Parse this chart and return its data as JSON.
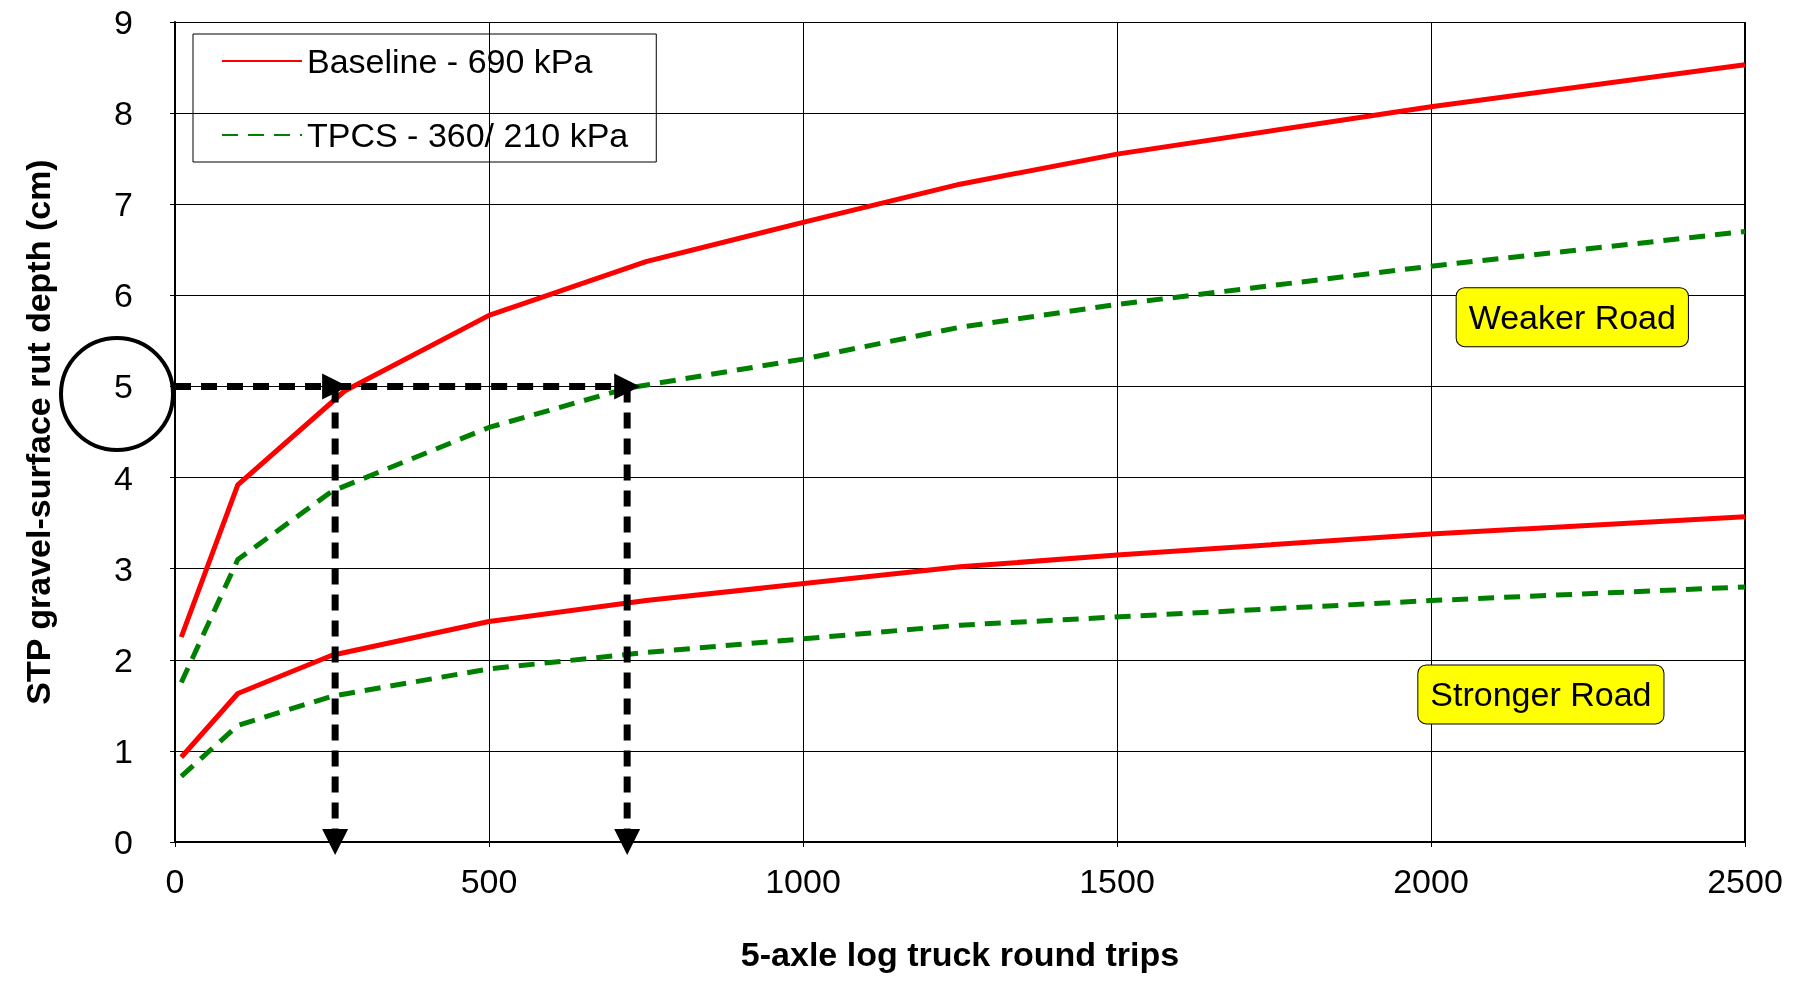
{
  "chart_data": {
    "type": "line",
    "xlabel": "5-axle log truck round trips",
    "ylabel": "STP gravel-surface rut depth (cm)",
    "xlim": [
      0,
      2500
    ],
    "xticks": [
      0,
      500,
      1000,
      1500,
      2000,
      2500
    ],
    "ylim": [
      0,
      9
    ],
    "yticks": [
      0,
      1,
      2,
      3,
      4,
      5,
      6,
      7,
      8,
      9
    ],
    "grid": true,
    "legend": "top left",
    "marker": "none",
    "series": [
      {
        "name": "Baseline - 690 kPa",
        "color": "#ff0000",
        "line_style": "solid",
        "x": [
          10,
          100,
          270,
          500,
          750,
          1000,
          1250,
          1500,
          2000,
          2500
        ],
        "values": [
          2.25,
          3.92,
          4.95,
          5.78,
          6.37,
          6.8,
          7.22,
          7.55,
          8.07,
          8.53
        ]
      },
      {
        "name": "TPCS - 360/ 210 kPa",
        "color": "#008000",
        "line_style": "dashed",
        "x": [
          10,
          100,
          250,
          500,
          720,
          1000,
          1250,
          1500,
          2000,
          2500
        ],
        "values": [
          1.75,
          3.1,
          3.85,
          4.55,
          4.98,
          5.3,
          5.65,
          5.9,
          6.32,
          6.7
        ]
      },
      {
        "color": "#ff0000",
        "line_style": "solid",
        "x": [
          10,
          100,
          250,
          500,
          750,
          1250,
          1500,
          2000,
          2500
        ],
        "values": [
          0.93,
          1.63,
          2.05,
          2.42,
          2.65,
          3.02,
          3.15,
          3.38,
          3.57
        ]
      },
      {
        "color": "#008000",
        "line_style": "dashed",
        "x": [
          10,
          100,
          250,
          500,
          750,
          1250,
          2000,
          2500
        ],
        "values": [
          0.72,
          1.28,
          1.6,
          1.9,
          2.08,
          2.38,
          2.65,
          2.8
        ]
      },
      {
        "color": "#000000",
        "line_style": "dashed",
        "marker": "triangle",
        "x": [
          0,
          255
        ],
        "values": [
          5,
          5
        ]
      },
      {
        "color": "#000000",
        "line_style": "dashed",
        "marker": "triangle",
        "x": [
          255,
          255
        ],
        "values": [
          5,
          0
        ]
      },
      {
        "color": "#000000",
        "line_style": "dashed",
        "marker": "triangle",
        "x": [
          255,
          720
        ],
        "values": [
          5,
          5
        ]
      },
      {
        "color": "#000000",
        "line_style": "dashed",
        "marker": "triangle",
        "x": [
          720,
          720
        ],
        "values": [
          5,
          0
        ]
      }
    ],
    "annotations": [
      "Weaker Road",
      "Stronger Road"
    ]
  }
}
